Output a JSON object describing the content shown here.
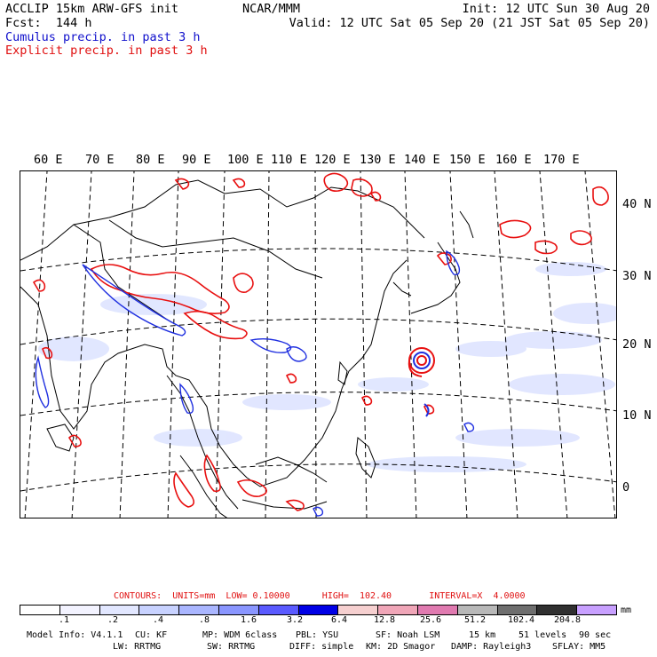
{
  "header": {
    "model_title": "ACCLIP 15km ARW-GFS init",
    "center": "NCAR/MMM",
    "init": "Init: 12 UTC Sun 30 Aug 20",
    "fcst": "Fcst:  144 h",
    "valid": "Valid: 12 UTC Sat 05 Sep 20 (21 JST Sat 05 Sep 20)",
    "legend_cumulus": "Cumulus precip. in past 3 h",
    "legend_explicit": "Explicit precip. in past 3 h"
  },
  "map": {
    "lon_labels": [
      "60 E",
      "70 E",
      "80 E",
      "90 E",
      "100 E",
      "110 E",
      "120 E",
      "130 E",
      "140 E",
      "150 E",
      "160 E",
      "170 E"
    ],
    "lat_labels": [
      "40 N",
      "30 N",
      "20 N",
      "10 N",
      "0"
    ],
    "colors": {
      "cumulus": "#2030e0",
      "explicit": "#e81010",
      "land_outline": "#000000",
      "grid": "#000000"
    }
  },
  "contours_text": "CONTOURS:  UNITS=mm  LOW= 0.10000      HIGH=  102.40       INTERVAL=X  4.0000",
  "colorbar": {
    "colors": [
      "#ffffff",
      "#f3f3ff",
      "#e2e7ff",
      "#c8d2ff",
      "#aab6ff",
      "#8a96ff",
      "#5a5aff",
      "#0000e6",
      "#f6d0d0",
      "#f0a6b8",
      "#e07ab0",
      "#b8b8b8",
      "#6e6e6e",
      "#303030",
      "#c8a0ff"
    ],
    "ticks": [
      ".1",
      ".2",
      ".4",
      ".8",
      "1.6",
      "3.2",
      "6.4",
      "12.8",
      "25.6",
      "51.2",
      "102.4",
      "204.8"
    ],
    "unit": "mm"
  },
  "footer": {
    "line1_left": "Model Info: V4.1.1",
    "line1_cu": "CU: KF",
    "line1_mp": "MP: WDM 6class",
    "line1_pbl": "PBL: YSU",
    "line1_sf": "SF: Noah LSM",
    "line1_res": "15 km",
    "line1_levels": "51 levels",
    "line1_dt": "90 sec",
    "line2_lw": "LW: RRTMG",
    "line2_sw": "SW: RRTMG",
    "line2_diff": "DIFF: simple",
    "line2_km": "KM: 2D Smagor",
    "line2_damp": "DAMP: Rayleigh3",
    "line2_sflay": "SFLAY: MM5"
  }
}
